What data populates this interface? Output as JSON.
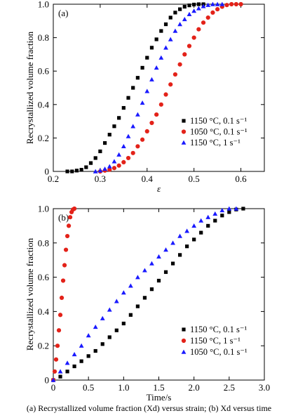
{
  "caption": "(a) Recrystallized volume fraction (Xd) versus strain; (b) Xd versus time",
  "chart_data": [
    {
      "type": "scatter",
      "panel_label": "(a)",
      "xlabel": "ε",
      "ylabel": "Recrystallized volume fraction",
      "xlim": [
        0.2,
        0.65
      ],
      "ylim": [
        0,
        1.0
      ],
      "xticks": [
        "0.2",
        "0.3",
        "0.4",
        "0.5",
        "0.6"
      ],
      "yticks": [
        "0",
        "0.2",
        "0.4",
        "0.6",
        "0.8",
        "1.0"
      ],
      "legend_position": "right",
      "series": [
        {
          "name": "1150 °C, 0.1 s⁻¹",
          "marker": "square",
          "color": "#000000",
          "x": [
            0.23,
            0.24,
            0.25,
            0.26,
            0.27,
            0.28,
            0.29,
            0.3,
            0.31,
            0.32,
            0.33,
            0.34,
            0.35,
            0.36,
            0.37,
            0.38,
            0.39,
            0.4,
            0.41,
            0.42,
            0.43,
            0.44,
            0.45,
            0.46,
            0.47,
            0.48,
            0.49,
            0.5,
            0.51,
            0.52
          ],
          "y": [
            0.0,
            0.0,
            0.005,
            0.01,
            0.025,
            0.05,
            0.08,
            0.12,
            0.17,
            0.22,
            0.27,
            0.32,
            0.38,
            0.44,
            0.5,
            0.56,
            0.62,
            0.68,
            0.74,
            0.79,
            0.84,
            0.88,
            0.92,
            0.95,
            0.97,
            0.985,
            0.993,
            0.998,
            1.0,
            1.0
          ]
        },
        {
          "name": "1050 °C, 0.1 s⁻¹",
          "marker": "circle",
          "color": "#e32219",
          "x": [
            0.3,
            0.31,
            0.32,
            0.33,
            0.34,
            0.35,
            0.36,
            0.37,
            0.38,
            0.39,
            0.4,
            0.41,
            0.42,
            0.43,
            0.44,
            0.45,
            0.46,
            0.47,
            0.48,
            0.49,
            0.5,
            0.51,
            0.52,
            0.53,
            0.54,
            0.55,
            0.56,
            0.57,
            0.58,
            0.59,
            0.6
          ],
          "y": [
            0.0,
            0.005,
            0.01,
            0.02,
            0.035,
            0.055,
            0.08,
            0.11,
            0.15,
            0.19,
            0.24,
            0.29,
            0.34,
            0.4,
            0.46,
            0.52,
            0.58,
            0.64,
            0.7,
            0.75,
            0.8,
            0.85,
            0.89,
            0.92,
            0.95,
            0.97,
            0.985,
            0.995,
            1.0,
            1.0,
            1.0
          ]
        },
        {
          "name": "1150 °C, 1 s⁻¹",
          "marker": "triangle",
          "color": "#1a1aff",
          "x": [
            0.29,
            0.3,
            0.31,
            0.32,
            0.33,
            0.34,
            0.35,
            0.36,
            0.37,
            0.38,
            0.39,
            0.4,
            0.41,
            0.42,
            0.43,
            0.44,
            0.45,
            0.46,
            0.47,
            0.48,
            0.49,
            0.5,
            0.51,
            0.52,
            0.53,
            0.54,
            0.55,
            0.56
          ],
          "y": [
            0.0,
            0.005,
            0.015,
            0.03,
            0.06,
            0.1,
            0.15,
            0.21,
            0.27,
            0.34,
            0.41,
            0.48,
            0.55,
            0.62,
            0.68,
            0.74,
            0.79,
            0.84,
            0.88,
            0.91,
            0.94,
            0.96,
            0.975,
            0.988,
            0.995,
            1.0,
            1.0,
            1.0
          ]
        }
      ]
    },
    {
      "type": "scatter",
      "panel_label": "(b)",
      "xlabel": "Time/s",
      "ylabel": "Recrystallized volume fraction",
      "xlim": [
        0,
        3.0
      ],
      "ylim": [
        0,
        1.0
      ],
      "xticks": [
        "0",
        "0.5",
        "1.0",
        "1.5",
        "2.0",
        "2.5",
        "3.0"
      ],
      "yticks": [
        "0",
        "0.2",
        "0.4",
        "0.6",
        "0.8",
        "1.0"
      ],
      "legend_position": "bottom-right",
      "series": [
        {
          "name": "1150 °C, 0.1 s⁻¹",
          "marker": "square",
          "color": "#000000",
          "x": [
            0.0,
            0.1,
            0.2,
            0.3,
            0.4,
            0.5,
            0.6,
            0.7,
            0.8,
            0.9,
            1.0,
            1.1,
            1.2,
            1.3,
            1.4,
            1.5,
            1.6,
            1.7,
            1.8,
            1.9,
            2.0,
            2.1,
            2.2,
            2.3,
            2.4,
            2.5,
            2.6,
            2.7
          ],
          "y": [
            0.0,
            0.02,
            0.05,
            0.08,
            0.11,
            0.14,
            0.17,
            0.21,
            0.25,
            0.29,
            0.33,
            0.38,
            0.43,
            0.48,
            0.53,
            0.58,
            0.63,
            0.68,
            0.73,
            0.78,
            0.82,
            0.86,
            0.9,
            0.93,
            0.96,
            0.98,
            0.995,
            1.0
          ]
        },
        {
          "name": "1150 °C, 1 s⁻¹",
          "marker": "circle",
          "color": "#e32219",
          "x": [
            0.0,
            0.02,
            0.04,
            0.06,
            0.08,
            0.1,
            0.12,
            0.14,
            0.16,
            0.18,
            0.2,
            0.22,
            0.24,
            0.26,
            0.28,
            0.3
          ],
          "y": [
            0.0,
            0.05,
            0.12,
            0.2,
            0.29,
            0.38,
            0.48,
            0.58,
            0.67,
            0.76,
            0.84,
            0.9,
            0.95,
            0.98,
            0.995,
            1.0
          ]
        },
        {
          "name": "1050 °C, 0.1 s⁻¹",
          "marker": "triangle",
          "color": "#1a1aff",
          "x": [
            0.0,
            0.1,
            0.2,
            0.3,
            0.4,
            0.5,
            0.6,
            0.7,
            0.8,
            0.9,
            1.0,
            1.1,
            1.2,
            1.3,
            1.4,
            1.5,
            1.6,
            1.7,
            1.8,
            1.9,
            2.0,
            2.1,
            2.2,
            2.3,
            2.4,
            2.5,
            2.6
          ],
          "y": [
            0.0,
            0.05,
            0.1,
            0.15,
            0.2,
            0.26,
            0.31,
            0.36,
            0.41,
            0.46,
            0.51,
            0.55,
            0.6,
            0.64,
            0.68,
            0.72,
            0.76,
            0.8,
            0.84,
            0.87,
            0.9,
            0.93,
            0.95,
            0.97,
            0.99,
            1.0,
            1.0
          ]
        }
      ]
    }
  ]
}
